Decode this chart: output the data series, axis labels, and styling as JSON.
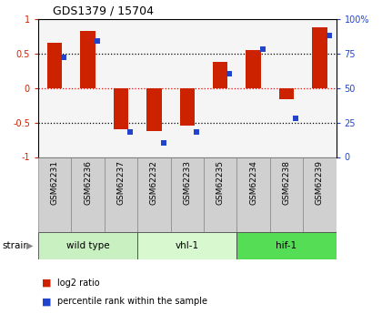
{
  "title": "GDS1379 / 15704",
  "samples": [
    "GSM62231",
    "GSM62236",
    "GSM62237",
    "GSM62232",
    "GSM62233",
    "GSM62235",
    "GSM62234",
    "GSM62238",
    "GSM62239"
  ],
  "log2_ratio": [
    0.65,
    0.82,
    -0.6,
    -0.62,
    -0.55,
    0.38,
    0.55,
    -0.16,
    0.88
  ],
  "percentile_rank": [
    72,
    84,
    18,
    10,
    18,
    60,
    78,
    28,
    88
  ],
  "groups": [
    {
      "label": "wild type",
      "indices": [
        0,
        1,
        2
      ],
      "color": "#c8f0c0"
    },
    {
      "label": "vhl-1",
      "indices": [
        3,
        4,
        5
      ],
      "color": "#d8f8d0"
    },
    {
      "label": "hif-1",
      "indices": [
        6,
        7,
        8
      ],
      "color": "#55dd55"
    }
  ],
  "bar_color_red": "#cc2200",
  "bar_color_blue": "#2244cc",
  "plot_bg_color": "#f5f5f5",
  "sample_box_color": "#d0d0d0",
  "strain_label": "strain",
  "legend_items": [
    "log2 ratio",
    "percentile rank within the sample"
  ]
}
